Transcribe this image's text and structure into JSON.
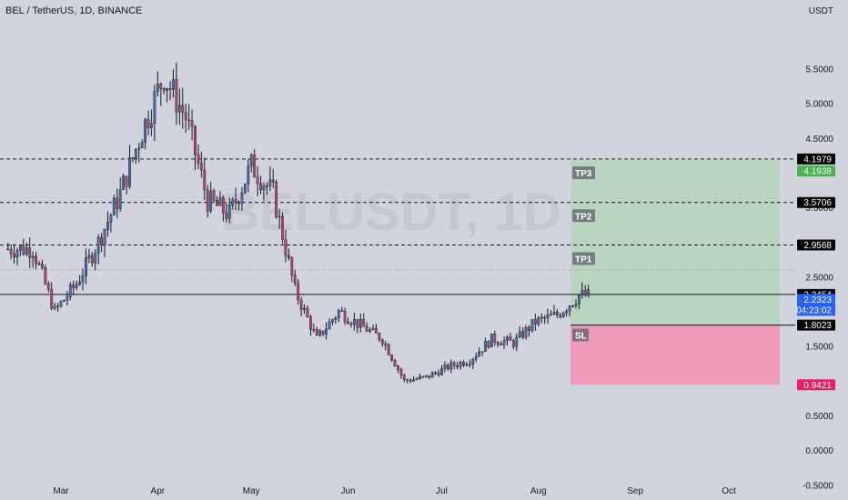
{
  "header": {
    "title": "BEL / TetherUS, 1D, BINANCE",
    "currency": "USDT"
  },
  "watermark": "BELUSDT, 1D",
  "price_axis": {
    "ticks": [
      "5.5000",
      "5.0000",
      "4.5000",
      "4.0000",
      "3.5000",
      "2.5000",
      "2.0000",
      "1.5000",
      "0.5000",
      "0.0000",
      "-0.5000"
    ]
  },
  "time_axis": {
    "labels": [
      "Mar",
      "Apr",
      "May",
      "Jun",
      "Jul",
      "Aug",
      "Sep",
      "Oct"
    ]
  },
  "levels": {
    "tp3": {
      "label": "TP3",
      "tag": "4.1979",
      "value": 4.1979,
      "color": "#000000"
    },
    "tp3_zone_top": {
      "tag": "4.1938",
      "value": 4.1938,
      "color": "#4caf50"
    },
    "tp2": {
      "label": "TP2",
      "tag": "3.5706",
      "value": 3.5706,
      "color": "#000000"
    },
    "tp1": {
      "label": "TP1",
      "tag": "2.9568",
      "value": 2.9568,
      "color": "#000000"
    },
    "entry": {
      "tag": "2.2454",
      "value": 2.2454,
      "color": "#000000"
    },
    "last": {
      "tag": "2.2323",
      "countdown": "04:23:02",
      "value": 2.2323,
      "color": "#2962ff"
    },
    "sl": {
      "label": "SL",
      "tag": "1.8023",
      "value": 1.8023,
      "color": "#000000"
    },
    "sl_zone_bottom": {
      "tag": "0.9421",
      "value": 0.9421,
      "color": "#e91e63"
    }
  },
  "colors": {
    "background": "#d1d4dc",
    "up_candle": "#4a6fa5",
    "down_candle": "#b0476b",
    "wick": "#131722",
    "profit_zone": "#a5d6a7",
    "loss_zone": "#f48fb1"
  },
  "chart_data": {
    "type": "candlestick",
    "title": "BEL / TetherUS, 1D, BINANCE",
    "ylabel": "USDT",
    "ylim": [
      -0.7,
      6.2
    ],
    "x_labels": [
      "Mar",
      "Apr",
      "May",
      "Jun",
      "Jul",
      "Aug",
      "Sep",
      "Oct"
    ],
    "approx_weekly_closes": [
      {
        "date": "2022-02-20",
        "close": 2.9
      },
      {
        "date": "2022-02-27",
        "close": 2.0
      },
      {
        "date": "2022-03-06",
        "close": 2.4
      },
      {
        "date": "2022-03-13",
        "close": 3.0
      },
      {
        "date": "2022-03-20",
        "close": 3.7
      },
      {
        "date": "2022-03-27",
        "close": 4.6
      },
      {
        "date": "2022-04-03",
        "close": 5.4
      },
      {
        "date": "2022-04-10",
        "close": 4.8
      },
      {
        "date": "2022-04-17",
        "close": 3.6
      },
      {
        "date": "2022-04-24",
        "close": 3.4
      },
      {
        "date": "2022-05-01",
        "close": 4.1
      },
      {
        "date": "2022-05-08",
        "close": 3.7
      },
      {
        "date": "2022-05-15",
        "close": 2.3
      },
      {
        "date": "2022-05-22",
        "close": 1.6
      },
      {
        "date": "2022-05-29",
        "close": 2.0
      },
      {
        "date": "2022-06-05",
        "close": 1.8
      },
      {
        "date": "2022-06-12",
        "close": 1.6
      },
      {
        "date": "2022-06-19",
        "close": 1.0
      },
      {
        "date": "2022-06-26",
        "close": 1.05
      },
      {
        "date": "2022-07-03",
        "close": 1.2
      },
      {
        "date": "2022-07-10",
        "close": 1.3
      },
      {
        "date": "2022-07-17",
        "close": 1.6
      },
      {
        "date": "2022-07-24",
        "close": 1.55
      },
      {
        "date": "2022-07-31",
        "close": 1.85
      },
      {
        "date": "2022-08-07",
        "close": 1.95
      },
      {
        "date": "2022-08-14",
        "close": 2.23
      }
    ],
    "horizontal_levels": [
      4.1979,
      3.5706,
      2.9568,
      2.2454,
      1.8023
    ],
    "position": {
      "entry": 2.2454,
      "target": 4.1938,
      "stop": 0.9421
    },
    "grid": false,
    "legend": "none"
  }
}
